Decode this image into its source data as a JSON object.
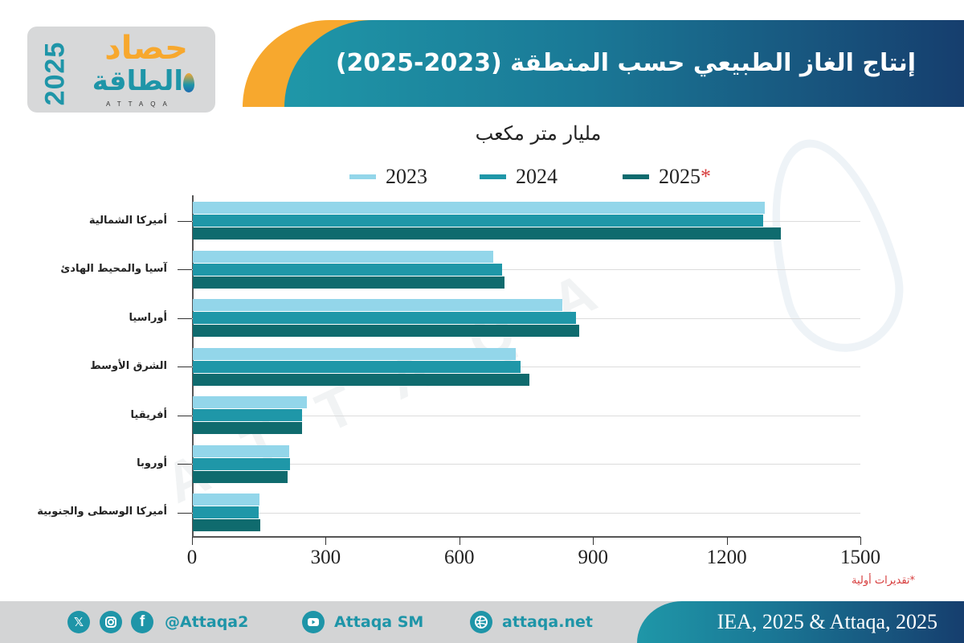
{
  "logo": {
    "year": "2025",
    "top_text": "حصاد",
    "bottom_text": "الطاقة",
    "latin": "ATTAQA"
  },
  "header": {
    "title": "إنتاج الغاز الطبيعي حسب المنطقة (2023-2025)"
  },
  "colors": {
    "orange": "#f7a82e",
    "teal": "#1e95a8",
    "navy": "#163e6e",
    "series_2023": "#93d6ea",
    "series_2024": "#1f97a8",
    "series_2025": "#0f6b6e",
    "note_red": "#d63a3a"
  },
  "chart": {
    "unit": "مليار متر مكعب",
    "legend": [
      {
        "label": "2023",
        "star": ""
      },
      {
        "label": "2024",
        "star": ""
      },
      {
        "label": "2025",
        "star": "*"
      }
    ],
    "x_ticks": [
      "0",
      "300",
      "600",
      "900",
      "1200",
      "1500"
    ],
    "categories": [
      "أميركا الشمالية",
      "آسيا والمحيط الهادئ",
      "أوراسيا",
      "الشرق الأوسط",
      "أفريقيا",
      "أوروبا",
      "أميركا الوسطى والجنوبية"
    ],
    "note": "*تقديرات أولية"
  },
  "chart_data": {
    "type": "bar",
    "orientation": "horizontal",
    "title": "إنتاج الغاز الطبيعي حسب المنطقة (2023-2025)",
    "subtitle": "مليار متر مكعب",
    "xlabel": "",
    "ylabel": "",
    "xlim": [
      0,
      1500
    ],
    "x_ticks": [
      0,
      300,
      600,
      900,
      1200,
      1500
    ],
    "grid": true,
    "legend_position": "top",
    "categories": [
      "أميركا الشمالية",
      "آسيا والمحيط الهادئ",
      "أوراسيا",
      "الشرق الأوسط",
      "أفريقيا",
      "أوروبا",
      "أميركا الوسطى والجنوبية"
    ],
    "series": [
      {
        "name": "2023",
        "values": [
          1284,
          674,
          829,
          725,
          256,
          216,
          150
        ]
      },
      {
        "name": "2024",
        "values": [
          1280,
          694,
          860,
          735,
          245,
          218,
          148
        ]
      },
      {
        "name": "2025*",
        "values": [
          1320,
          700,
          867,
          755,
          245,
          213,
          152
        ]
      }
    ],
    "annotations": [
      "*تقديرات أولية"
    ]
  },
  "footer": {
    "social_handle": "@Attaqa2",
    "youtube": "Attaqa SM",
    "website": "attaqa.net",
    "source": "IEA, 2025 & Attaqa, 2025",
    "icons": [
      "x-icon",
      "instagram-icon",
      "facebook-icon",
      "youtube-icon",
      "globe-icon"
    ]
  }
}
